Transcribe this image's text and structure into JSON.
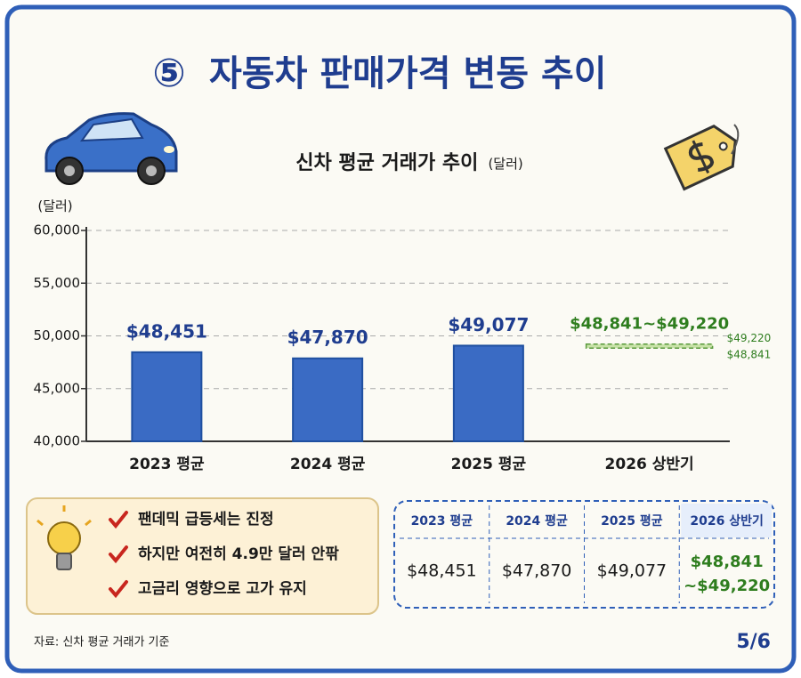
{
  "header": {
    "number": "⑤",
    "title": "자동차 판매가격 변동 추이"
  },
  "chart_data": {
    "type": "bar",
    "title": "신차 평균 거래가 추이",
    "title_unit": "(달러)",
    "y_axis_label": "(달러)",
    "categories": [
      "2023 평균",
      "2024 평균",
      "2025 평균",
      "2026 상반기"
    ],
    "values": [
      48451,
      47870,
      49077,
      null
    ],
    "value_labels": [
      "$48,451",
      "$47,870",
      "$49,077",
      null
    ],
    "color": "#3a6bc4",
    "range": {
      "low": 48841,
      "high": 49220,
      "label": "$48,841~$49,220",
      "low_label": "$48,841",
      "high_label": "$49,220",
      "color": "#c8e2a8"
    },
    "ylim": [
      40000,
      60000
    ],
    "yticks": [
      {
        "value": 40000,
        "label": "40,000"
      },
      {
        "value": 45000,
        "label": "45,000"
      },
      {
        "value": 50000,
        "label": "50,000"
      },
      {
        "value": 55000,
        "label": "55,000"
      },
      {
        "value": 60000,
        "label": "60,000"
      }
    ],
    "grid": true
  },
  "notes": [
    "팬데믹 급등세는 진정",
    "하지만 여전히 4.9만 달러 안팎",
    "고금리 영향으로 고가 유지"
  ],
  "table": {
    "headers": [
      "2023 평균",
      "2024 평균",
      "2025 평균",
      "2026 상반기"
    ],
    "rows": [
      [
        "$48,451",
        "$47,870",
        "$49,077",
        [
          "$48,841",
          "~$49,220"
        ]
      ]
    ]
  },
  "footer": {
    "source": "자료: 신차 평균 거래가 기준",
    "page": "5/6"
  }
}
